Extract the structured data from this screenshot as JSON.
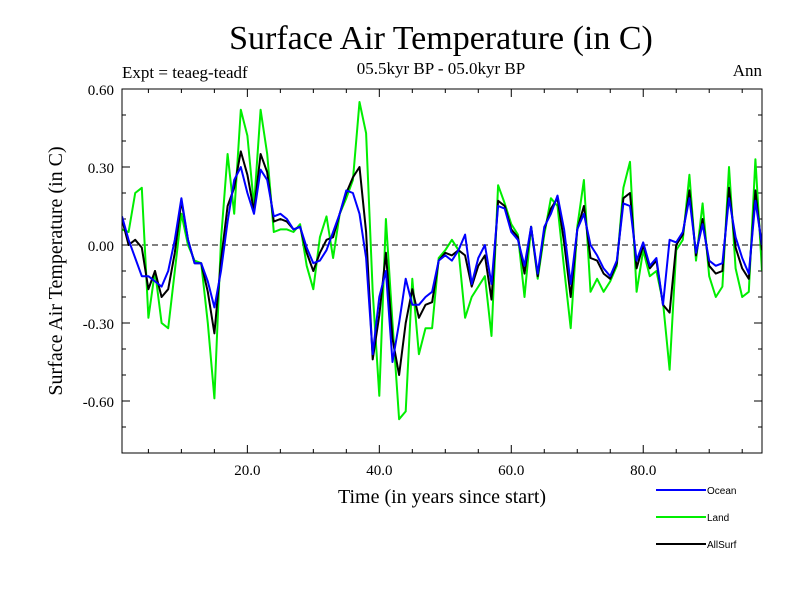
{
  "chart_data": {
    "type": "line",
    "title": "Surface Air Temperature (in C)",
    "subtitle": "05.5kyr BP - 05.0kyr BP",
    "left_note": "Expt = teaeg-teadf",
    "right_note": "Ann",
    "xlabel": "Time (in years since start)",
    "ylabel": "Surface Air Temperature (in C)",
    "xlim": [
      1,
      98
    ],
    "ylim": [
      -0.8,
      0.6
    ],
    "x_ticks": [
      20,
      40,
      60,
      80
    ],
    "x_tick_labels": [
      "20.0",
      "40.0",
      "60.0",
      "80.0"
    ],
    "y_ticks": [
      0.6,
      0.3,
      0.0,
      -0.3,
      -0.6
    ],
    "y_tick_labels": [
      "0.60",
      "0.30",
      "0.00",
      "-0.30",
      "-0.60"
    ],
    "zero_line": "dashed",
    "legend_position": "bottom-right",
    "series": [
      {
        "name": "Ocean",
        "color": "#0000ff",
        "values": [
          0.11,
          0.02,
          -0.05,
          -0.12,
          -0.12,
          -0.14,
          -0.16,
          -0.1,
          0.02,
          0.18,
          0.02,
          -0.07,
          -0.07,
          -0.14,
          -0.24,
          -0.1,
          0.09,
          0.25,
          0.3,
          0.2,
          0.12,
          0.29,
          0.25,
          0.11,
          0.12,
          0.1,
          0.06,
          0.07,
          -0.01,
          -0.07,
          -0.06,
          -0.02,
          0.05,
          0.12,
          0.21,
          0.2,
          0.12,
          -0.05,
          -0.42,
          -0.2,
          -0.1,
          -0.45,
          -0.3,
          -0.13,
          -0.23,
          -0.23,
          -0.2,
          -0.18,
          -0.06,
          -0.04,
          -0.06,
          -0.02,
          0.04,
          -0.15,
          -0.05,
          0.0,
          -0.15,
          0.15,
          0.14,
          0.05,
          0.02,
          -0.08,
          0.07,
          -0.11,
          0.07,
          0.12,
          0.19,
          0.06,
          -0.15,
          0.06,
          0.12,
          0.0,
          -0.04,
          -0.09,
          -0.12,
          -0.06,
          0.16,
          0.15,
          -0.06,
          0.01,
          -0.08,
          -0.05,
          -0.23,
          0.02,
          0.01,
          0.05,
          0.18,
          -0.03,
          0.08,
          -0.06,
          -0.08,
          -0.07,
          0.18,
          0.03,
          -0.05,
          -0.11,
          0.17,
          0.0
        ]
      },
      {
        "name": "Land",
        "color": "#00ee00",
        "values": [
          0.06,
          0.05,
          0.2,
          0.22,
          -0.28,
          -0.1,
          -0.3,
          -0.32,
          -0.1,
          0.12,
          0.0,
          -0.06,
          -0.07,
          -0.3,
          -0.59,
          0.02,
          0.35,
          0.12,
          0.52,
          0.42,
          0.15,
          0.52,
          0.35,
          0.05,
          0.06,
          0.06,
          0.05,
          0.08,
          -0.08,
          -0.17,
          0.03,
          0.11,
          -0.05,
          0.12,
          0.18,
          0.25,
          0.55,
          0.43,
          -0.18,
          -0.58,
          0.1,
          -0.3,
          -0.67,
          -0.64,
          -0.13,
          -0.42,
          -0.32,
          -0.32,
          -0.05,
          -0.02,
          0.02,
          -0.02,
          -0.28,
          -0.2,
          -0.16,
          -0.12,
          -0.35,
          0.23,
          0.16,
          0.08,
          0.04,
          -0.2,
          0.07,
          -0.13,
          0.04,
          0.18,
          0.15,
          -0.09,
          -0.32,
          0.07,
          0.25,
          -0.18,
          -0.13,
          -0.18,
          -0.14,
          -0.08,
          0.22,
          0.32,
          -0.18,
          -0.02,
          -0.12,
          -0.1,
          -0.22,
          -0.48,
          -0.02,
          0.02,
          0.27,
          -0.06,
          0.16,
          -0.12,
          -0.2,
          -0.16,
          0.3,
          -0.09,
          -0.2,
          -0.18,
          0.33,
          -0.1
        ]
      },
      {
        "name": "AllSurf",
        "color": "#000000",
        "values": [
          0.1,
          0.0,
          0.02,
          -0.01,
          -0.17,
          -0.1,
          -0.2,
          -0.17,
          -0.03,
          0.17,
          0.02,
          -0.07,
          -0.07,
          -0.18,
          -0.34,
          -0.06,
          0.15,
          0.22,
          0.36,
          0.27,
          0.13,
          0.35,
          0.28,
          0.09,
          0.1,
          0.09,
          0.06,
          0.07,
          -0.03,
          -0.1,
          -0.03,
          0.02,
          0.03,
          0.12,
          0.2,
          0.26,
          0.3,
          0.05,
          -0.44,
          -0.27,
          -0.03,
          -0.36,
          -0.5,
          -0.3,
          -0.17,
          -0.28,
          -0.23,
          -0.22,
          -0.06,
          -0.03,
          -0.04,
          -0.02,
          -0.04,
          -0.16,
          -0.08,
          -0.04,
          -0.21,
          0.17,
          0.15,
          0.06,
          0.03,
          -0.11,
          0.07,
          -0.12,
          0.06,
          0.14,
          0.18,
          0.01,
          -0.2,
          0.06,
          0.15,
          -0.05,
          -0.06,
          -0.11,
          -0.13,
          -0.07,
          0.18,
          0.2,
          -0.09,
          0.0,
          -0.09,
          -0.06,
          -0.23,
          -0.26,
          0.0,
          0.04,
          0.21,
          -0.04,
          0.1,
          -0.08,
          -0.11,
          -0.1,
          0.22,
          -0.01,
          -0.09,
          -0.13,
          0.21,
          -0.02
        ]
      }
    ]
  }
}
